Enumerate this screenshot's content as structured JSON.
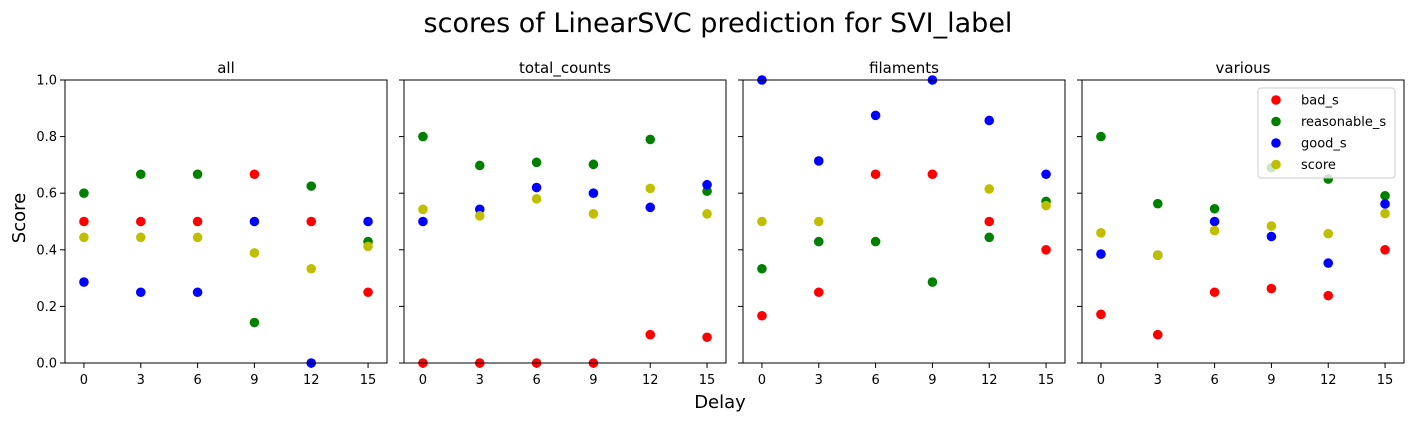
{
  "chart_data": {
    "type": "scatter",
    "title": "scores of LinearSVC prediction for SVI_label",
    "xlabel": "Delay",
    "ylabel": "Score",
    "ylim": [
      0,
      1
    ],
    "xlim": [
      -1,
      16
    ],
    "x": [
      0,
      3,
      6,
      9,
      12,
      15
    ],
    "xticks": [
      "0",
      "3",
      "6",
      "9",
      "12",
      "15"
    ],
    "yticks": [
      "0.0",
      "0.2",
      "0.4",
      "0.6",
      "0.8",
      "1.0"
    ],
    "grid": false,
    "legend_position": "top-right of last panel",
    "series_colors": {
      "bad_s": "#ff0000",
      "reasonable_s": "#008000",
      "good_s": "#0000ff",
      "score": "#bfbf00"
    },
    "legend": [
      "bad_s",
      "reasonable_s",
      "good_s",
      "score"
    ],
    "panels": [
      {
        "title": "all",
        "series": [
          {
            "name": "bad_s",
            "values": [
              0.5,
              0.5,
              0.5,
              0.667,
              0.5,
              0.25
            ]
          },
          {
            "name": "reasonable_s",
            "values": [
              0.6,
              0.667,
              0.667,
              0.143,
              0.625,
              0.429
            ]
          },
          {
            "name": "good_s",
            "values": [
              0.286,
              0.25,
              0.25,
              0.5,
              0.0,
              0.5
            ]
          },
          {
            "name": "score",
            "values": [
              0.444,
              0.444,
              0.444,
              0.389,
              0.333,
              0.412
            ]
          }
        ]
      },
      {
        "title": "total_counts",
        "series": [
          {
            "name": "bad_s",
            "values": [
              0.0,
              0.0,
              0.0,
              0.0,
              0.1,
              0.091
            ]
          },
          {
            "name": "reasonable_s",
            "values": [
              0.8,
              0.698,
              0.709,
              0.702,
              0.79,
              0.607
            ]
          },
          {
            "name": "good_s",
            "values": [
              0.5,
              0.543,
              0.62,
              0.6,
              0.55,
              0.63
            ]
          },
          {
            "name": "score",
            "values": [
              0.543,
              0.52,
              0.58,
              0.527,
              0.617,
              0.527
            ]
          }
        ]
      },
      {
        "title": "filaments",
        "series": [
          {
            "name": "bad_s",
            "values": [
              0.167,
              0.25,
              0.667,
              0.667,
              0.5,
              0.4
            ]
          },
          {
            "name": "reasonable_s",
            "values": [
              0.333,
              0.429,
              0.429,
              0.286,
              0.444,
              0.571
            ]
          },
          {
            "name": "good_s",
            "values": [
              1.0,
              0.714,
              0.875,
              1.0,
              0.857,
              0.667
            ]
          },
          {
            "name": "score",
            "values": [
              0.5,
              0.5,
              0.667,
              0.667,
              0.615,
              0.556
            ]
          }
        ]
      },
      {
        "title": "various",
        "series": [
          {
            "name": "bad_s",
            "values": [
              0.172,
              0.1,
              0.25,
              0.263,
              0.238,
              0.4
            ]
          },
          {
            "name": "reasonable_s",
            "values": [
              0.8,
              0.563,
              0.545,
              0.69,
              0.65,
              0.591
            ]
          },
          {
            "name": "good_s",
            "values": [
              0.385,
              0.381,
              0.5,
              0.447,
              0.353,
              0.562
            ]
          },
          {
            "name": "score",
            "values": [
              0.46,
              0.381,
              0.468,
              0.484,
              0.457,
              0.528
            ]
          }
        ]
      }
    ]
  }
}
